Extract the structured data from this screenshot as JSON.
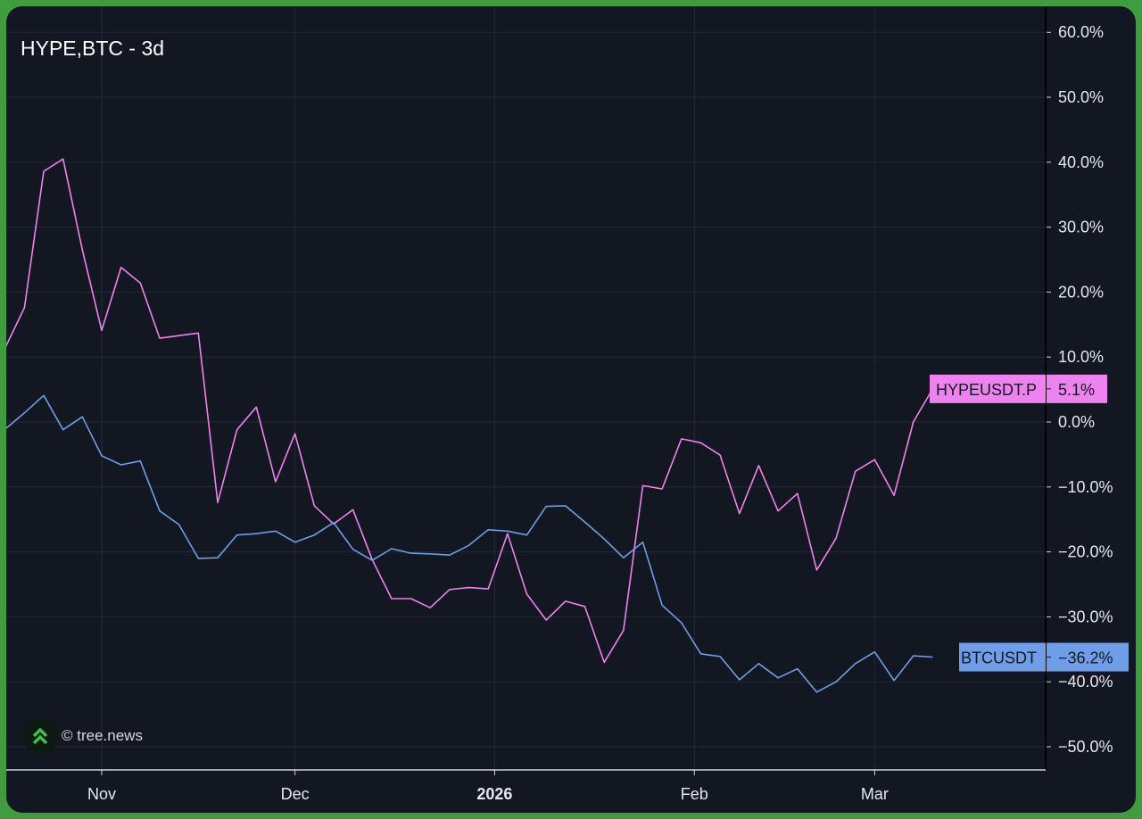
{
  "chart_data": {
    "type": "line",
    "title": "HYPE,BTC - 3d",
    "xlabel": "",
    "ylabel": "",
    "x_unit": "days relative to Nov 1 (3-day candles)",
    "x_ticks": [
      {
        "label": "Nov",
        "day": 0,
        "bold": false
      },
      {
        "label": "Dec",
        "day": 30,
        "bold": false
      },
      {
        "label": "2026",
        "day": 61,
        "bold": true
      },
      {
        "label": "Feb",
        "day": 92,
        "bold": false
      },
      {
        "label": "Mar",
        "day": 120,
        "bold": false
      }
    ],
    "y_ticks": [
      "60.0%",
      "50.0%",
      "40.0%",
      "30.0%",
      "20.0%",
      "10.0%",
      "0.0%",
      "−10.0%",
      "−20.0%",
      "−30.0%",
      "−40.0%",
      "−50.0%"
    ],
    "y_tick_values": [
      60,
      50,
      40,
      30,
      20,
      10,
      0,
      -10,
      -20,
      -30,
      -40,
      -50
    ],
    "ylim": [
      -55,
      64
    ],
    "xlim": [
      -15.8,
      146
    ],
    "grid": true,
    "series": [
      {
        "name": "HYPEUSDT.P",
        "color": "#ee82ee",
        "last_label": "5.1%",
        "last_value": 5.1,
        "start_day": -15,
        "step_days": 3,
        "values": [
          11.4,
          17.6,
          38.6,
          40.5,
          26.5,
          14.1,
          23.8,
          21.4,
          12.9,
          13.3,
          13.7,
          -12.4,
          -1.2,
          2.3,
          -9.2,
          -1.8,
          -12.9,
          -15.7,
          -13.5,
          -21.2,
          -27.2,
          -27.2,
          -28.6,
          -25.8,
          -25.5,
          -25.7,
          -17.2,
          -26.5,
          -30.5,
          -27.6,
          -28.4,
          -37.0,
          -32.1,
          -9.8,
          -10.3,
          -2.6,
          -3.2,
          -5.1,
          -14.1,
          -6.7,
          -13.7,
          -11.0,
          -22.8,
          -17.9,
          -7.6,
          -5.8,
          -11.3,
          0.0,
          5.1
        ]
      },
      {
        "name": "BTCUSDT",
        "color": "#6f9de8",
        "last_label": "−36.2%",
        "last_value": -36.2,
        "start_day": -15,
        "step_days": 3,
        "values": [
          -1.1,
          1.4,
          4.1,
          -1.2,
          0.8,
          -5.2,
          -6.6,
          -6.0,
          -13.7,
          -15.8,
          -21.0,
          -20.9,
          -17.4,
          -17.2,
          -16.8,
          -18.5,
          -17.4,
          -15.5,
          -19.6,
          -21.3,
          -19.5,
          -20.2,
          -20.3,
          -20.5,
          -19.0,
          -16.6,
          -16.8,
          -17.4,
          -13.0,
          -12.9,
          -15.4,
          -18.0,
          -20.9,
          -18.5,
          -28.2,
          -30.9,
          -35.7,
          -36.1,
          -39.7,
          -37.2,
          -39.4,
          -38.0,
          -41.6,
          -40.0,
          -37.2,
          -35.4,
          -39.8,
          -36.0,
          -36.2
        ]
      }
    ]
  },
  "watermark": "© tree.news"
}
